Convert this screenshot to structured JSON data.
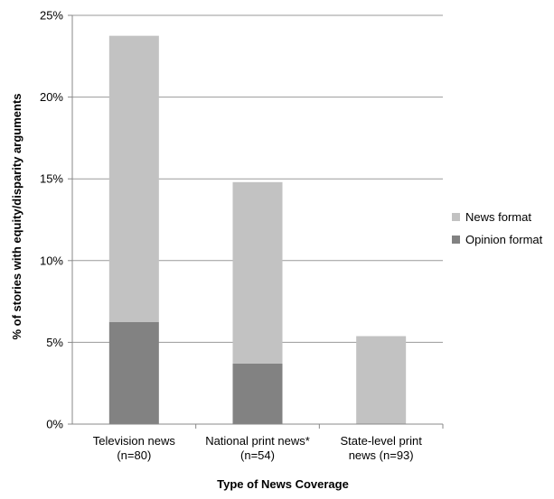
{
  "chart_data": {
    "type": "bar",
    "stacked": true,
    "title": "",
    "xlabel": "Type of News Coverage",
    "ylabel": "% of stories with equity/disparity arguments",
    "ylim": [
      0,
      25
    ],
    "yticks": [
      0,
      5,
      10,
      15,
      20,
      25
    ],
    "ytick_labels": [
      "0%",
      "5%",
      "10%",
      "15%",
      "20%",
      "25%"
    ],
    "categories": [
      [
        "Television news",
        "(n=80)"
      ],
      [
        "National print news*",
        "(n=54)"
      ],
      [
        "State-level print",
        "news (n=93)"
      ]
    ],
    "series": [
      {
        "name": "Opinion format",
        "color": "#828282",
        "values": [
          6.25,
          3.7,
          0
        ]
      },
      {
        "name": "News format",
        "color": "#c2c2c2",
        "values": [
          17.5,
          11.1,
          5.38
        ]
      }
    ],
    "legend": {
      "position": "right",
      "items": [
        {
          "label": "News format",
          "color": "#c2c2c2"
        },
        {
          "label": "Opinion format",
          "color": "#828282"
        }
      ]
    },
    "grid": true
  }
}
